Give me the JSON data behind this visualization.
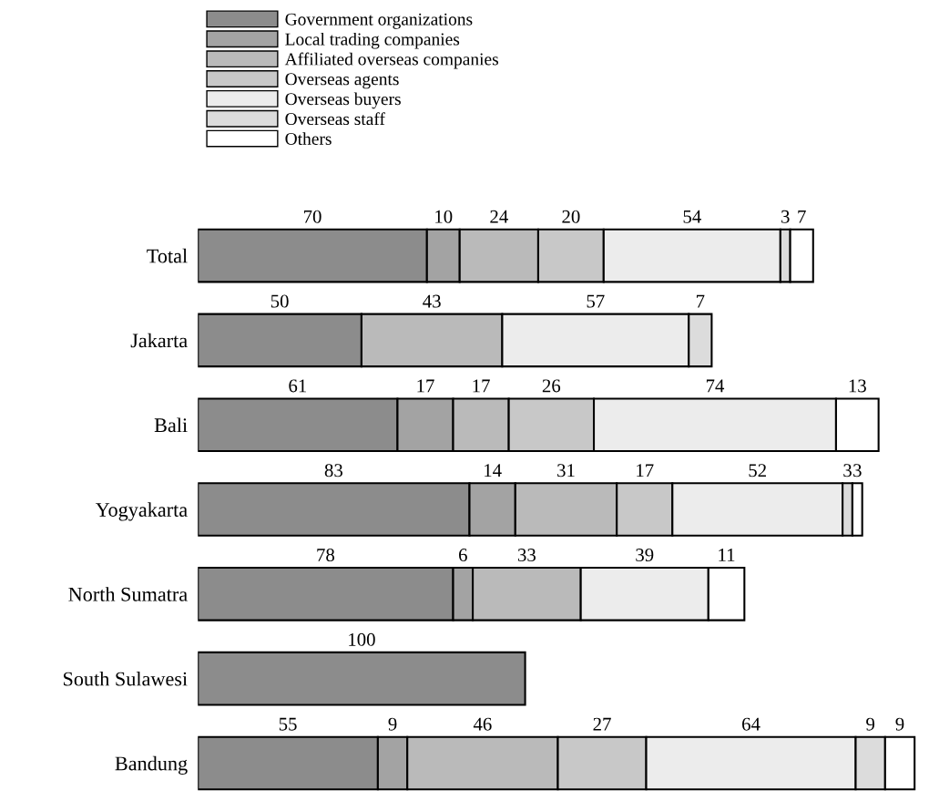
{
  "chart_data": {
    "type": "bar",
    "orientation": "horizontal",
    "stacked": true,
    "legend": "top left",
    "grid": false,
    "tick_labels": "y",
    "xlim": [
      0,
      220
    ],
    "categories": [
      "Total",
      "Jakarta",
      "Bali",
      "Yogyakarta",
      "North Sumatra",
      "South Sulawesi",
      "Bandung"
    ],
    "series": [
      {
        "name": "Government organizations",
        "color": "#8c8c8c",
        "values": [
          70,
          50,
          61,
          83,
          78,
          100,
          55
        ]
      },
      {
        "name": "Local trading companies",
        "color": "#a3a3a3",
        "values": [
          10,
          null,
          17,
          14,
          6,
          null,
          9
        ]
      },
      {
        "name": "Affiliated overseas companies",
        "color": "#bababa",
        "values": [
          24,
          43,
          17,
          31,
          33,
          null,
          46
        ]
      },
      {
        "name": "Overseas agents",
        "color": "#c8c8c8",
        "values": [
          20,
          null,
          26,
          17,
          null,
          null,
          27
        ]
      },
      {
        "name": "Overseas buyers",
        "color": "#ececec",
        "values": [
          54,
          57,
          74,
          52,
          39,
          null,
          64
        ]
      },
      {
        "name": "Overseas staff",
        "color": "#dcdcdc",
        "values": [
          3,
          7,
          null,
          3,
          null,
          null,
          9
        ]
      },
      {
        "name": "Others",
        "color": "#ffffff",
        "values": [
          7,
          null,
          13,
          3,
          11,
          null,
          9
        ]
      }
    ],
    "data_labels": true
  }
}
